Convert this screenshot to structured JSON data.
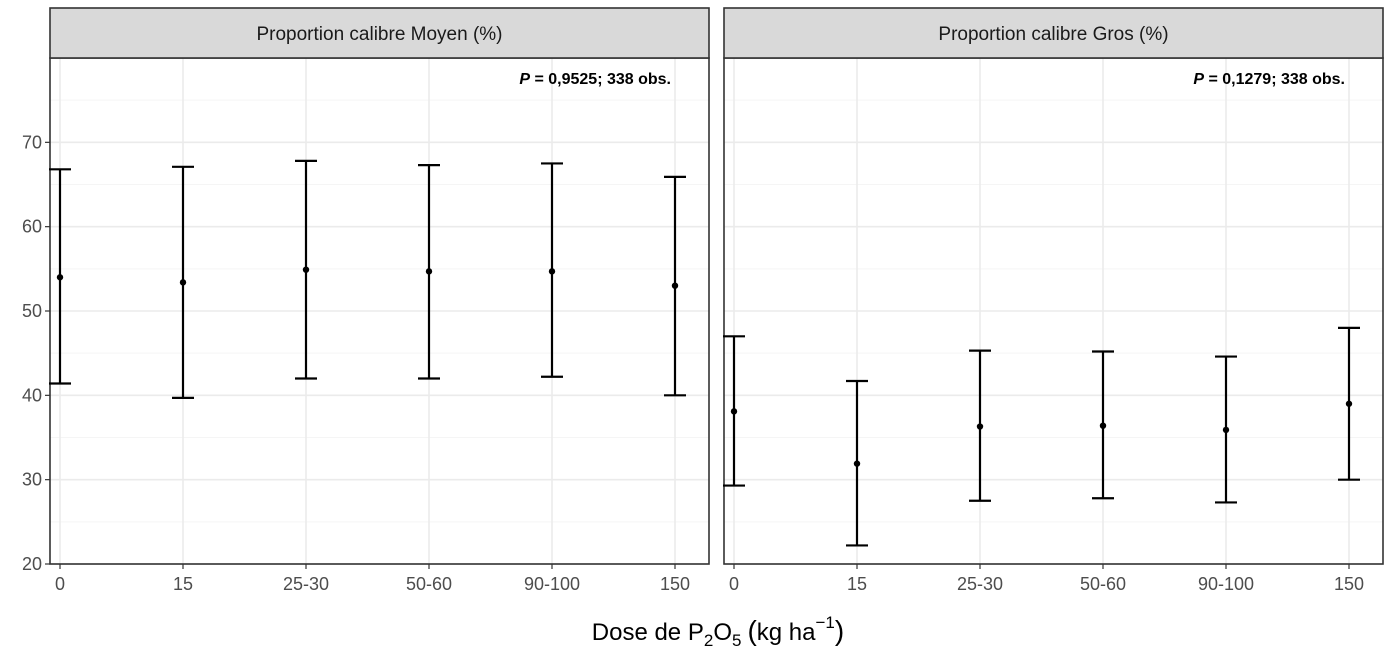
{
  "chart_data": {
    "type": "scatter",
    "xlabel": "Dose de P2O5 (kg ha-1)",
    "xlabel_parts": {
      "prefix": "Dose de P",
      "sub1": "2",
      "mid": "O",
      "sub2": "5",
      "paren_open": "(",
      "unit": "kg ha",
      "sup": "−1",
      "paren_close": ")"
    },
    "ylabel": "",
    "ylim": [
      20,
      80
    ],
    "yticks": [
      "20",
      "30",
      "40",
      "50",
      "60",
      "70"
    ],
    "categories": [
      "0",
      "15",
      "25-30",
      "50-60",
      "90-100",
      "150"
    ],
    "grid": true,
    "legend": "none",
    "panels": [
      {
        "title": "Proportion calibre Moyen (%)",
        "annotation": {
          "p_label": "P",
          "text": " = 0,9525; 338 obs."
        },
        "points": [
          {
            "x": "0",
            "mean": 54.0,
            "lower": 41.4,
            "upper": 66.8
          },
          {
            "x": "15",
            "mean": 53.4,
            "lower": 39.7,
            "upper": 67.1
          },
          {
            "x": "25-30",
            "mean": 54.9,
            "lower": 42.0,
            "upper": 67.8
          },
          {
            "x": "50-60",
            "mean": 54.7,
            "lower": 42.0,
            "upper": 67.3
          },
          {
            "x": "90-100",
            "mean": 54.7,
            "lower": 42.2,
            "upper": 67.5
          },
          {
            "x": "150",
            "mean": 53.0,
            "lower": 40.0,
            "upper": 65.9
          }
        ]
      },
      {
        "title": "Proportion calibre Gros (%)",
        "annotation": {
          "p_label": "P",
          "text": " = 0,1279; 338 obs."
        },
        "points": [
          {
            "x": "0",
            "mean": 38.1,
            "lower": 29.3,
            "upper": 47.0
          },
          {
            "x": "15",
            "mean": 31.9,
            "lower": 22.2,
            "upper": 41.7
          },
          {
            "x": "25-30",
            "mean": 36.3,
            "lower": 27.5,
            "upper": 45.3
          },
          {
            "x": "50-60",
            "mean": 36.4,
            "lower": 27.8,
            "upper": 45.2
          },
          {
            "x": "90-100",
            "mean": 35.9,
            "lower": 27.3,
            "upper": 44.6
          },
          {
            "x": "150",
            "mean": 39.0,
            "lower": 30.0,
            "upper": 48.0
          }
        ]
      }
    ],
    "colors": {
      "strip_fill": "#d9d9d9",
      "panel_border": "#333333",
      "grid_major": "#ebebeb",
      "grid_minor": "#f5f5f5",
      "marks": "#000000",
      "tick_text": "#4d4d4d"
    }
  }
}
